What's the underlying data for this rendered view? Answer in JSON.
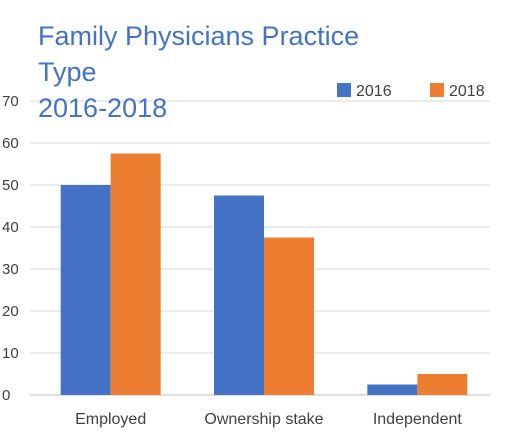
{
  "chart_data": {
    "type": "bar",
    "title_lines": [
      "Family Physicians Practice",
      "Type",
      "2016-2018"
    ],
    "categories": [
      "Employed",
      "Ownership stake",
      "Independent"
    ],
    "series": [
      {
        "name": "2016",
        "color": "#4472C4",
        "values": [
          50,
          47.5,
          2.5
        ]
      },
      {
        "name": "2018",
        "color": "#ED7D31",
        "values": [
          57.5,
          37.5,
          5
        ]
      }
    ],
    "ylim": [
      0,
      70
    ],
    "yticks": [
      0,
      10,
      20,
      30,
      40,
      50,
      60,
      70
    ],
    "grid": true,
    "legend_position": "top-right",
    "xlabel": "",
    "ylabel": ""
  }
}
